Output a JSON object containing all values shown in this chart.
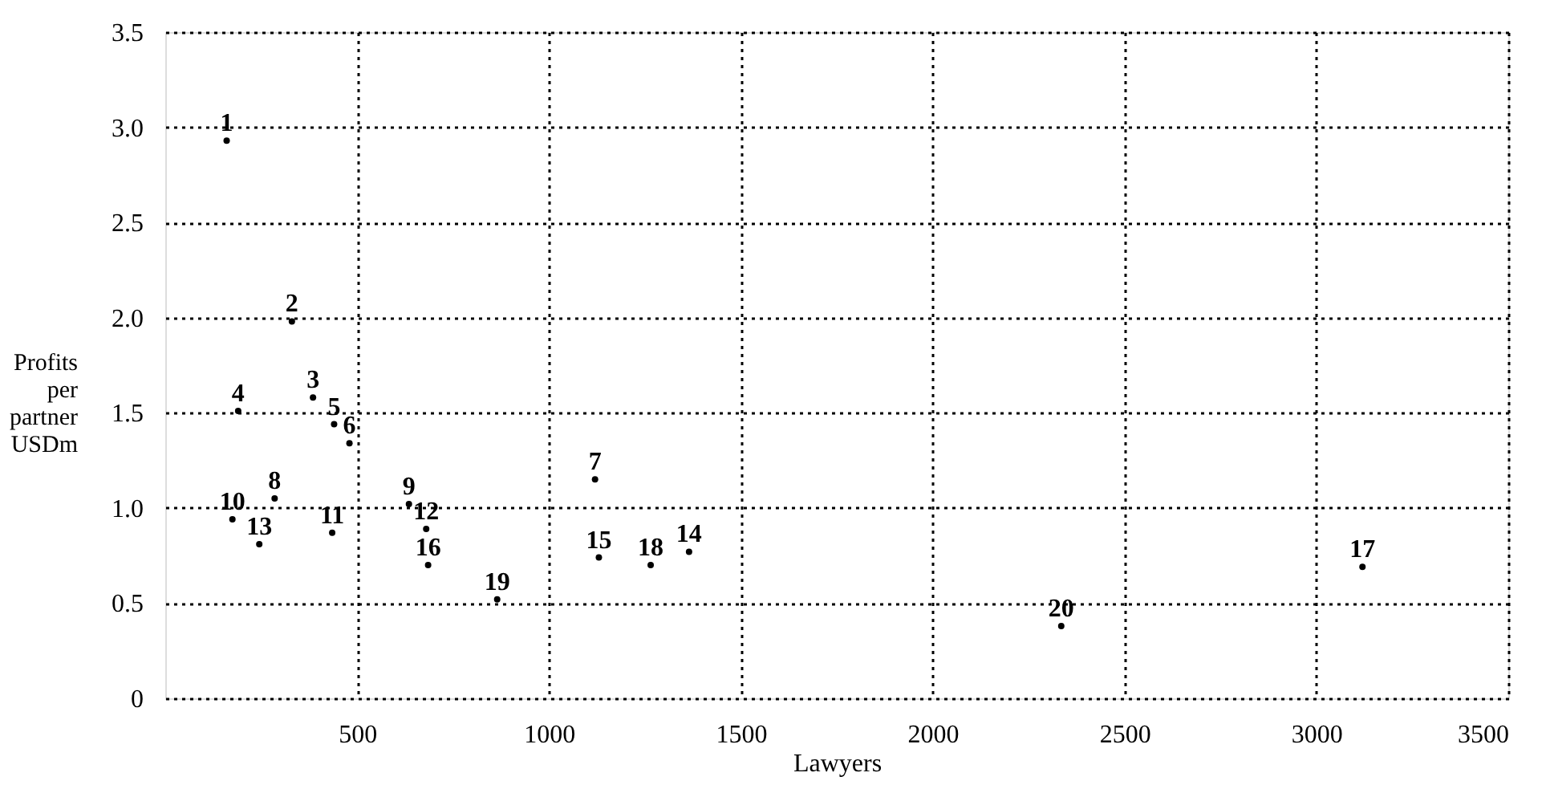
{
  "chart_data": {
    "type": "scatter",
    "xlabel": "Lawyers",
    "ylabel": "Profits per partner USDm",
    "series": [
      {
        "name": "1",
        "color": "#000000",
        "x": [
          160
        ],
        "values": [
          2.93
        ]
      },
      {
        "name": "2",
        "color": "#000000",
        "x": [
          330
        ],
        "values": [
          1.98
        ]
      },
      {
        "name": "3",
        "color": "#000000",
        "x": [
          385
        ],
        "values": [
          1.58
        ]
      },
      {
        "name": "4",
        "color": "#000000",
        "x": [
          190
        ],
        "values": [
          1.51
        ]
      },
      {
        "name": "5",
        "color": "#000000",
        "x": [
          440
        ],
        "values": [
          1.44
        ]
      },
      {
        "name": "6",
        "color": "#000000",
        "x": [
          480
        ],
        "values": [
          1.34
        ]
      },
      {
        "name": "7",
        "color": "#000000",
        "x": [
          1120
        ],
        "values": [
          1.15
        ]
      },
      {
        "name": "8",
        "color": "#000000",
        "x": [
          285
        ],
        "values": [
          1.05
        ]
      },
      {
        "name": "9",
        "color": "#000000",
        "x": [
          635
        ],
        "values": [
          1.02
        ]
      },
      {
        "name": "10",
        "color": "#000000",
        "x": [
          175
        ],
        "values": [
          0.94
        ]
      },
      {
        "name": "11",
        "color": "#000000",
        "x": [
          435
        ],
        "values": [
          0.87
        ]
      },
      {
        "name": "12",
        "color": "#000000",
        "x": [
          680
        ],
        "values": [
          0.89
        ]
      },
      {
        "name": "13",
        "color": "#000000",
        "x": [
          245
        ],
        "values": [
          0.81
        ]
      },
      {
        "name": "14",
        "color": "#000000",
        "x": [
          1365
        ],
        "values": [
          0.77
        ]
      },
      {
        "name": "15",
        "color": "#000000",
        "x": [
          1130
        ],
        "values": [
          0.74
        ]
      },
      {
        "name": "16",
        "color": "#000000",
        "x": [
          685
        ],
        "values": [
          0.7
        ]
      },
      {
        "name": "17",
        "color": "#000000",
        "x": [
          3120
        ],
        "values": [
          0.69
        ]
      },
      {
        "name": "18",
        "color": "#000000",
        "x": [
          1265
        ],
        "values": [
          0.7
        ]
      },
      {
        "name": "19",
        "color": "#000000",
        "x": [
          865
        ],
        "values": [
          0.52
        ]
      },
      {
        "name": "20",
        "color": "#000000",
        "x": [
          2335
        ],
        "values": [
          0.38
        ]
      }
    ],
    "xlim": [
      0,
      3500
    ],
    "xticks": [
      500,
      1000,
      1500,
      2000,
      2500,
      3000,
      3500
    ],
    "ylim": [
      0,
      3.5
    ],
    "yticks": [
      0,
      {
        "value": 0.5,
        "label": "0.5"
      },
      {
        "value": 1,
        "label": "1.0"
      },
      {
        "value": 1.5,
        "label": "1.5"
      },
      {
        "value": 2,
        "label": "2.0"
      },
      {
        "value": 2.5,
        "label": "2.5"
      },
      {
        "value": 3,
        "label": "3.0"
      },
      {
        "value": 3.5,
        "label": "3.5"
      }
    ],
    "grid": true,
    "marker": "circle",
    "legend": false
  }
}
